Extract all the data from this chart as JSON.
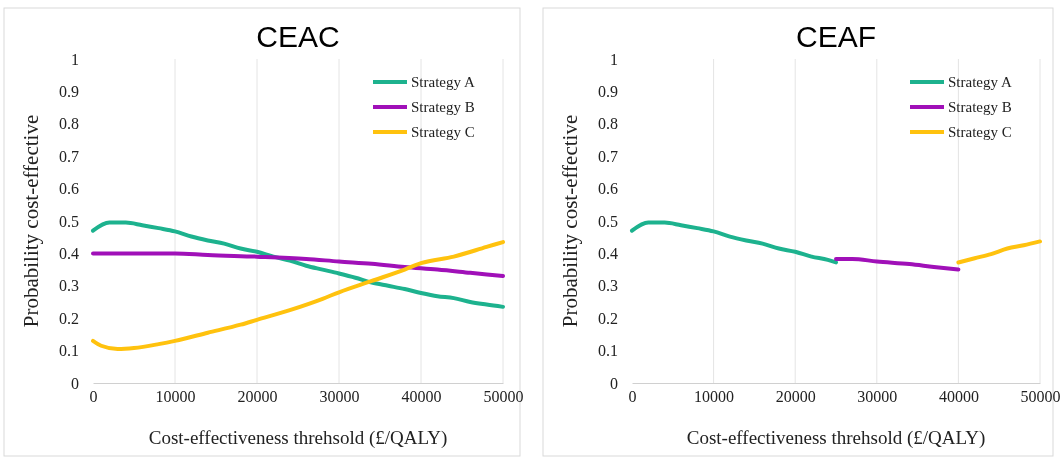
{
  "chart_data": [
    {
      "type": "line",
      "title": "CEAC",
      "xlabel": "Cost-effectiveness threhsold (£/QALY)",
      "ylabel": "Probability cost-effective",
      "xlim": [
        0,
        50000
      ],
      "xticks": [
        0,
        10000,
        20000,
        30000,
        40000,
        50000
      ],
      "ylim": [
        0,
        1
      ],
      "yticks": [
        0,
        0.1,
        0.2,
        0.3,
        0.4,
        0.5,
        0.6,
        0.7,
        0.8,
        0.9,
        1
      ],
      "grid": "x",
      "legend": "top right",
      "marker": "none",
      "line_style": "solid",
      "series": [
        {
          "name": "Strategy A",
          "color": "#1db28e",
          "x": [
            0,
            2000,
            4000,
            6000,
            8000,
            10000,
            12000,
            14000,
            16000,
            18000,
            20000,
            22000,
            24000,
            26000,
            28000,
            30000,
            32000,
            34000,
            36000,
            38000,
            40000,
            42000,
            44000,
            46000,
            48000,
            50000
          ],
          "values": [
            0.47,
            0.495,
            0.495,
            0.487,
            0.478,
            0.468,
            0.452,
            0.44,
            0.43,
            0.415,
            0.405,
            0.39,
            0.378,
            0.362,
            0.35,
            0.338,
            0.325,
            0.31,
            0.3,
            0.29,
            0.278,
            0.268,
            0.262,
            0.25,
            0.242,
            0.235
          ]
        },
        {
          "name": "Strategy B",
          "color": "#a010b8",
          "x": [
            0,
            10000,
            14000,
            20000,
            26000,
            30000,
            34000,
            38000,
            42000,
            46000,
            50000
          ],
          "values": [
            0.4,
            0.4,
            0.395,
            0.39,
            0.383,
            0.375,
            0.368,
            0.358,
            0.35,
            0.34,
            0.33
          ]
        },
        {
          "name": "Strategy C",
          "color": "#ffc20e",
          "x": [
            0,
            1000,
            3000,
            5000,
            8000,
            10000,
            14000,
            18000,
            20000,
            24000,
            28000,
            30000,
            34000,
            38000,
            40000,
            44000,
            48000,
            50000
          ],
          "values": [
            0.13,
            0.115,
            0.105,
            0.108,
            0.12,
            0.13,
            0.155,
            0.18,
            0.195,
            0.225,
            0.26,
            0.28,
            0.315,
            0.35,
            0.37,
            0.39,
            0.42,
            0.435
          ]
        }
      ]
    },
    {
      "type": "line",
      "title": "CEAF",
      "xlabel": "Cost-effectiveness threhsold (£/QALY)",
      "ylabel": "Probability cost-effective",
      "xlim": [
        0,
        50000
      ],
      "xticks": [
        0,
        10000,
        20000,
        30000,
        40000,
        50000
      ],
      "ylim": [
        0,
        1
      ],
      "yticks": [
        0,
        0.1,
        0.2,
        0.3,
        0.4,
        0.5,
        0.6,
        0.7,
        0.8,
        0.9,
        1
      ],
      "grid": "x",
      "legend": "top right",
      "marker": "none",
      "line_style": "solid",
      "series": [
        {
          "name": "Strategy A",
          "color": "#1db28e",
          "x": [
            0,
            2000,
            4000,
            6000,
            8000,
            10000,
            12000,
            14000,
            16000,
            18000,
            20000,
            22000,
            24000,
            25000
          ],
          "values": [
            0.47,
            0.495,
            0.495,
            0.487,
            0.478,
            0.468,
            0.452,
            0.44,
            0.43,
            0.415,
            0.405,
            0.39,
            0.38,
            0.372
          ]
        },
        {
          "name": "Strategy B",
          "color": "#a010b8",
          "x": [
            25000,
            27000,
            30000,
            34000,
            37000,
            40000
          ],
          "values": [
            0.383,
            0.383,
            0.375,
            0.367,
            0.358,
            0.35
          ]
        },
        {
          "name": "Strategy C",
          "color": "#ffc20e",
          "x": [
            40000,
            42000,
            44000,
            46000,
            48000,
            50000
          ],
          "values": [
            0.372,
            0.385,
            0.398,
            0.415,
            0.425,
            0.437
          ]
        }
      ]
    }
  ]
}
